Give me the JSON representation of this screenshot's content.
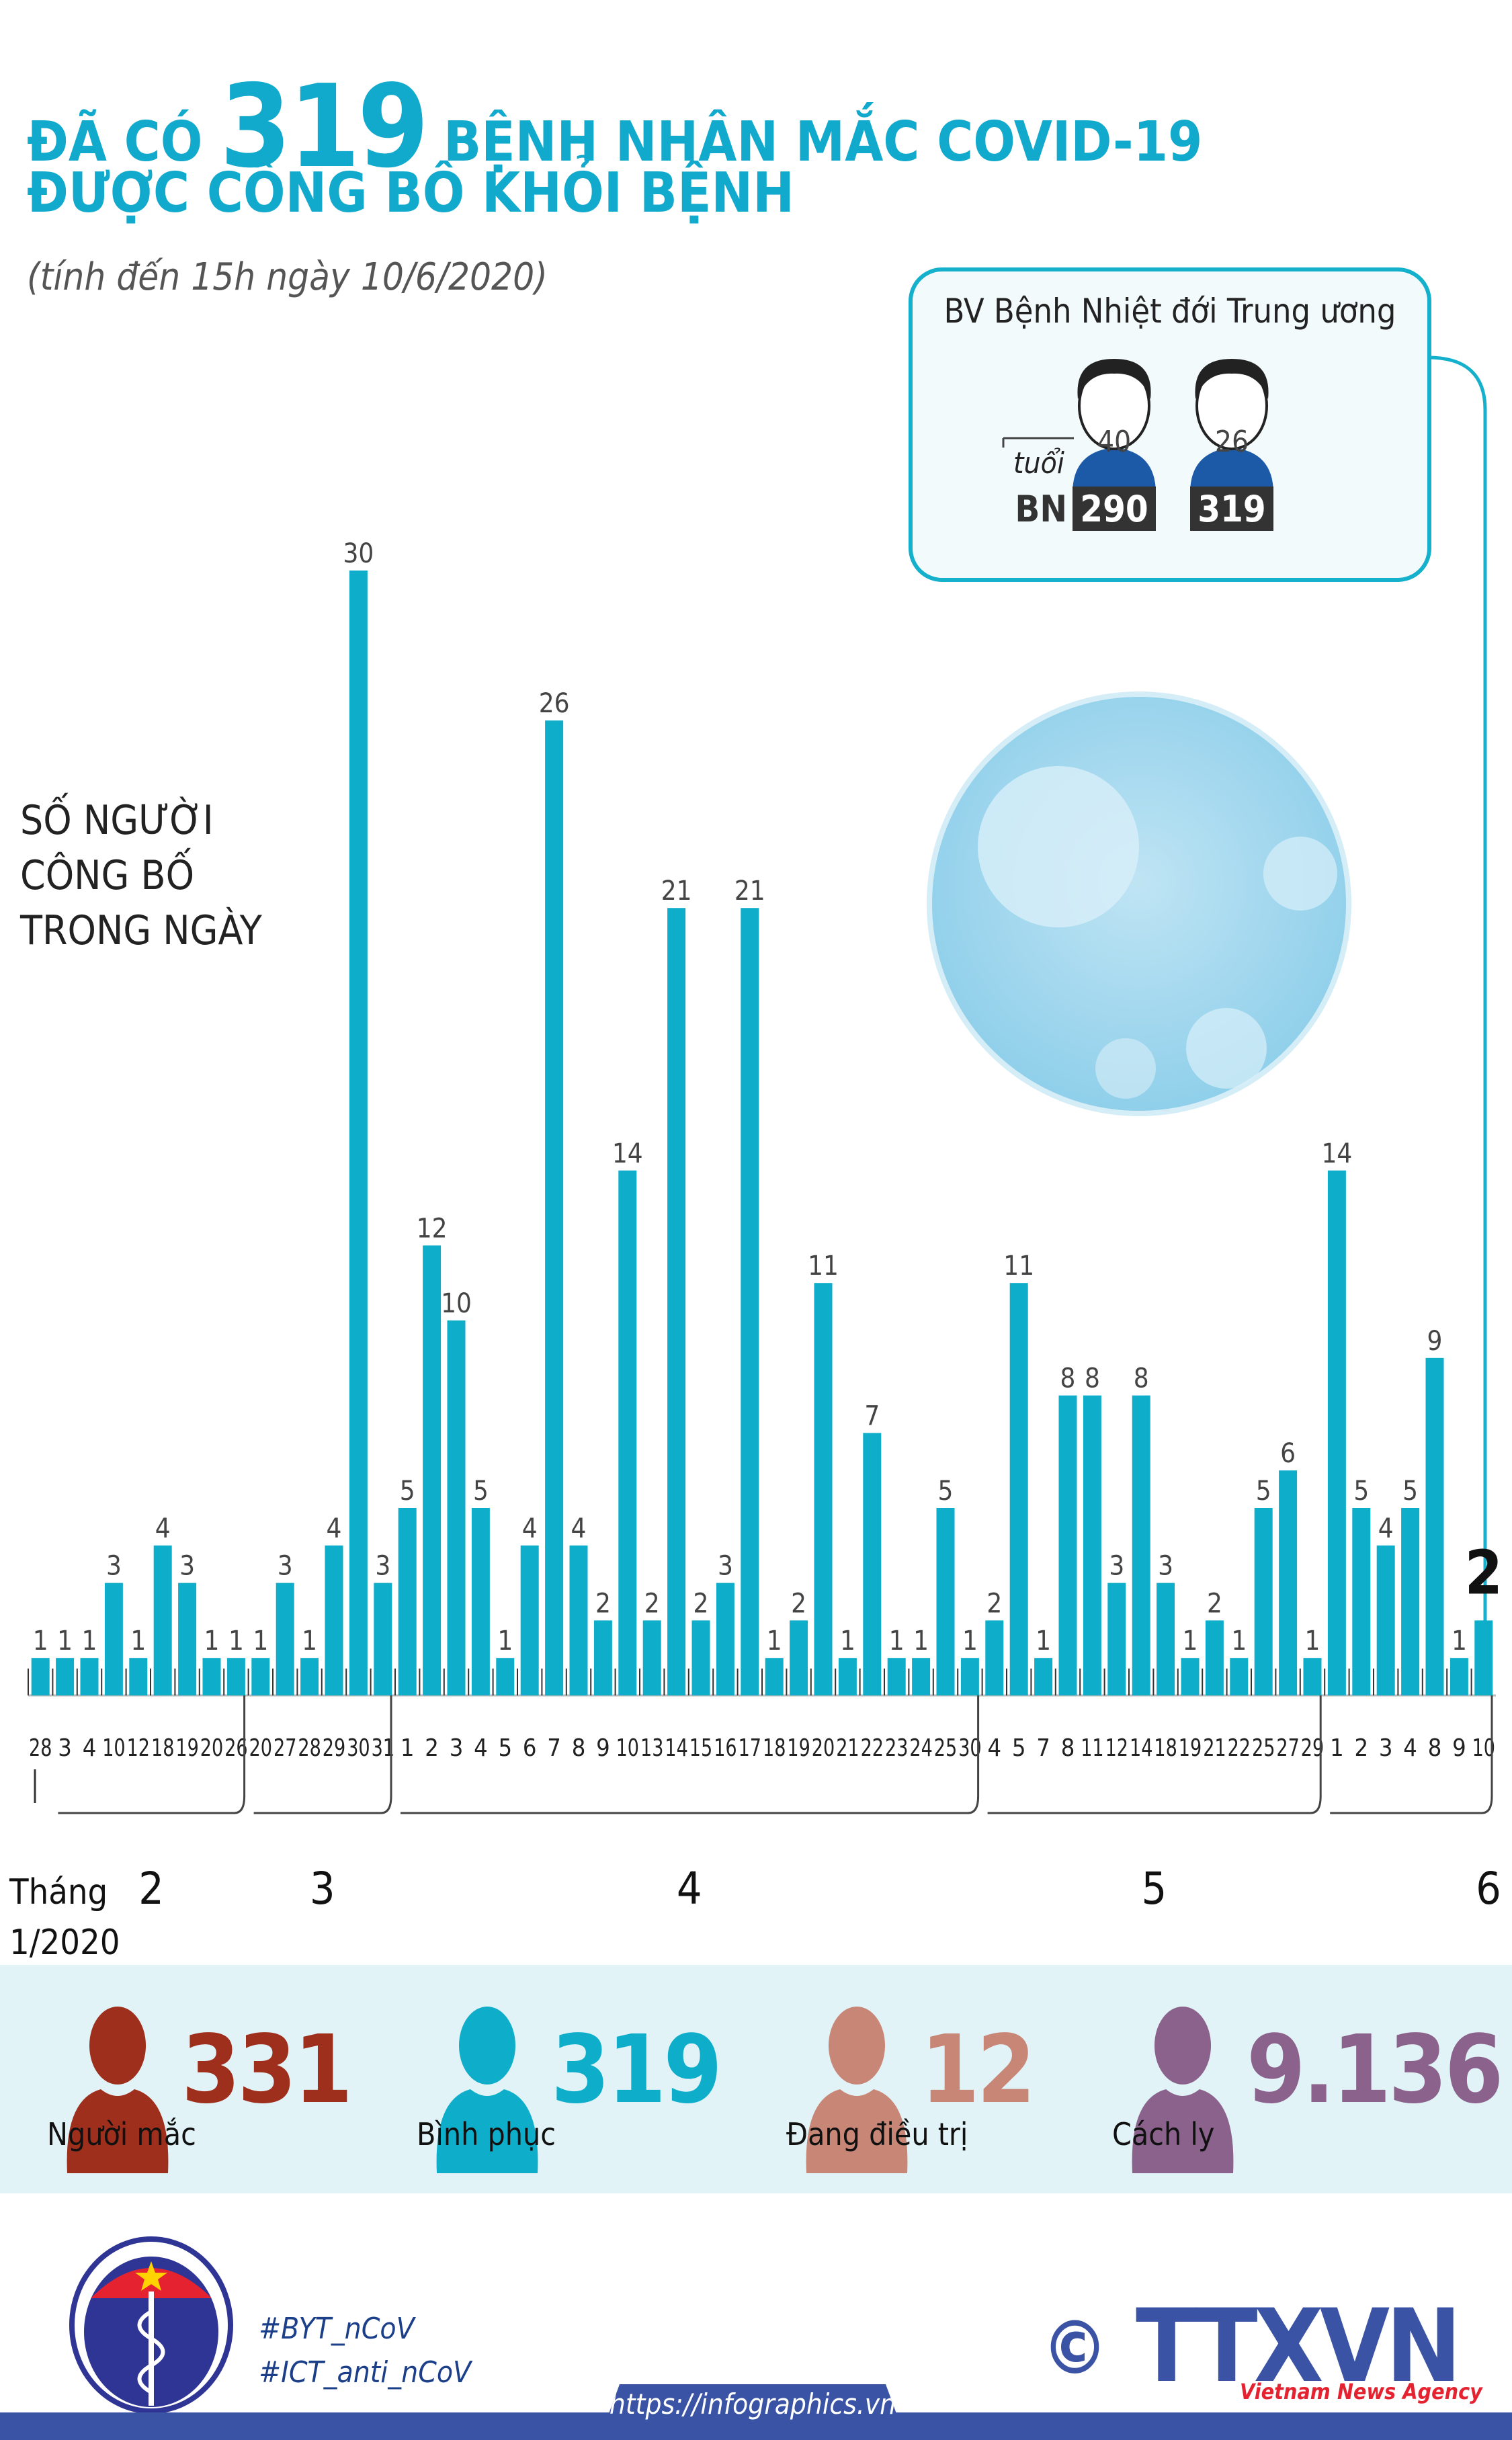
{
  "header": {
    "title_pre": "ĐÃ CÓ",
    "title_number": "319",
    "title_post": "BỆNH NHÂN MẮC COVID-19",
    "title_line2": "ĐƯỢC CÔNG BỐ KHỎI BỆNH",
    "subtitle": "(tính đến 15h ngày 10/6/2020)"
  },
  "callout": {
    "title": "BV Bệnh Nhiệt đới Trung ương",
    "age_label": "tuổi",
    "bn_label": "BN",
    "patients": [
      {
        "age": "40",
        "id": "290"
      },
      {
        "age": "26",
        "id": "319"
      }
    ]
  },
  "chart_data": {
    "type": "bar",
    "ylabel": "SỐ NGƯỜI CÔNG BỐ TRONG NGÀY",
    "xlabel": "Tháng 1/2020",
    "xlabel_lines": [
      "Tháng",
      "1/2020"
    ],
    "color": "#0eaecb",
    "months": [
      {
        "label": "2",
        "start": 1,
        "end": 8
      },
      {
        "label": "3",
        "start": 9,
        "end": 14
      },
      {
        "label": "4",
        "start": 15,
        "end": 38
      },
      {
        "label": "5",
        "start": 39,
        "end": 52
      },
      {
        "label": "6",
        "start": 53,
        "end": 59
      }
    ],
    "categories": [
      "28",
      "3",
      "4",
      "10",
      "12",
      "18",
      "19",
      "20",
      "26",
      "20",
      "27",
      "28",
      "29",
      "30",
      "31",
      "1",
      "2",
      "3",
      "4",
      "5",
      "6",
      "7",
      "8",
      "9",
      "10",
      "13",
      "14",
      "15",
      "16",
      "17",
      "18",
      "19",
      "20",
      "21",
      "22",
      "23",
      "24",
      "25",
      "30",
      "4",
      "5",
      "7",
      "8",
      "11",
      "12",
      "14",
      "18",
      "19",
      "21",
      "22",
      "25",
      "27",
      "29",
      "1",
      "2",
      "3",
      "4",
      "8",
      "9",
      "10"
    ],
    "values": [
      1,
      1,
      1,
      3,
      1,
      4,
      3,
      1,
      1,
      1,
      3,
      1,
      4,
      30,
      3,
      5,
      12,
      10,
      5,
      1,
      4,
      26,
      4,
      2,
      14,
      2,
      21,
      2,
      3,
      21,
      1,
      2,
      11,
      1,
      7,
      1,
      1,
      5,
      1,
      2,
      11,
      1,
      8,
      8,
      3,
      8,
      3,
      1,
      2,
      1,
      5,
      6,
      1,
      14,
      5,
      4,
      5,
      9,
      1,
      2
    ],
    "highlight_last": true
  },
  "stats": [
    {
      "value": "331",
      "label": "Người mắc",
      "color": "#9e2f1c"
    },
    {
      "value": "319",
      "label": "Bình phục",
      "color": "#0eaecb"
    },
    {
      "value": "12",
      "label": "Đang điều trị",
      "color": "#c88677"
    },
    {
      "value": "9.136",
      "label": "Cách ly",
      "color": "#8a628c"
    }
  ],
  "footer": {
    "ministry_logo": "BỘ Y TẾ MINISTRY OF HEALTH",
    "hashtags": [
      "#BYT_nCoV",
      "#ICT_anti_nCoV"
    ],
    "url": "https://infographics.vn",
    "agency_logo": "TTXVN",
    "agency_name": "Vietnam News Agency",
    "copyright": "©"
  }
}
